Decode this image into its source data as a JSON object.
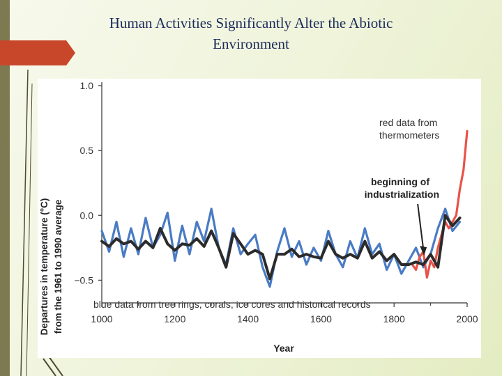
{
  "slide": {
    "title_line1": "Human Activities Significantly Alter the Abiotic",
    "title_line2": "Environment"
  },
  "colors": {
    "title": "#1b2a5a",
    "accent": "#c8472a",
    "band": "#7d7a52",
    "blue_series": "#4a7bc4",
    "red_series": "#e8534a",
    "smooth_series": "#2b2b2b"
  },
  "chart_data": {
    "type": "line",
    "xlabel": "Year",
    "ylabel_line1": "Departures in temperature (°C)",
    "ylabel_line2": "from the 1961 to 1990 average",
    "xlim": [
      1000,
      2000
    ],
    "ylim": [
      -0.6,
      1.0
    ],
    "x_ticks": [
      1000,
      1200,
      1400,
      1600,
      1800,
      2000
    ],
    "x_tick_labels": [
      "1000",
      "1200",
      "1400",
      "1600",
      "1800",
      "2000"
    ],
    "y_ticks": [
      1.0,
      0.5,
      0.0,
      -0.5
    ],
    "y_tick_labels": [
      "1.0",
      "0.5",
      "0.0",
      "−0.5"
    ],
    "annotations": {
      "thermometer_line1": "red data from",
      "thermometer_line2": "thermometers",
      "industrial_line1": "beginning of",
      "industrial_line2": "industrialization",
      "industrial_year": 1880,
      "proxy_note": "blue data from tree rings, corals, ice cores and historical records"
    },
    "series": [
      {
        "name": "proxy reconstruction (blue)",
        "x": [
          1000,
          1020,
          1040,
          1060,
          1080,
          1100,
          1120,
          1140,
          1160,
          1180,
          1200,
          1220,
          1240,
          1260,
          1280,
          1300,
          1320,
          1340,
          1360,
          1380,
          1400,
          1420,
          1440,
          1460,
          1480,
          1500,
          1520,
          1540,
          1560,
          1580,
          1600,
          1620,
          1640,
          1660,
          1680,
          1700,
          1720,
          1740,
          1760,
          1780,
          1800,
          1820,
          1840,
          1860,
          1880,
          1900,
          1920,
          1940,
          1960,
          1980
        ],
        "y": [
          -0.12,
          -0.28,
          -0.05,
          -0.32,
          -0.1,
          -0.3,
          -0.02,
          -0.25,
          -0.15,
          0.02,
          -0.35,
          -0.08,
          -0.3,
          -0.05,
          -0.2,
          0.05,
          -0.25,
          -0.38,
          -0.1,
          -0.3,
          -0.22,
          -0.15,
          -0.4,
          -0.55,
          -0.28,
          -0.1,
          -0.32,
          -0.2,
          -0.38,
          -0.25,
          -0.35,
          -0.12,
          -0.3,
          -0.4,
          -0.2,
          -0.33,
          -0.1,
          -0.3,
          -0.22,
          -0.42,
          -0.3,
          -0.45,
          -0.35,
          -0.25,
          -0.4,
          -0.3,
          -0.1,
          0.05,
          -0.12,
          -0.05
        ]
      },
      {
        "name": "thermometer record (red)",
        "x": [
          1850,
          1860,
          1870,
          1880,
          1890,
          1900,
          1910,
          1920,
          1930,
          1940,
          1950,
          1960,
          1970,
          1980,
          1990,
          2000
        ],
        "y": [
          -0.38,
          -0.42,
          -0.32,
          -0.28,
          -0.48,
          -0.35,
          -0.4,
          -0.25,
          -0.15,
          -0.05,
          -0.1,
          -0.05,
          0.0,
          0.2,
          0.35,
          0.65
        ]
      },
      {
        "name": "smoothed average (black)",
        "x": [
          1000,
          1020,
          1040,
          1060,
          1080,
          1100,
          1120,
          1140,
          1160,
          1180,
          1200,
          1220,
          1240,
          1260,
          1280,
          1300,
          1320,
          1340,
          1360,
          1380,
          1400,
          1420,
          1440,
          1460,
          1480,
          1500,
          1520,
          1540,
          1560,
          1580,
          1600,
          1620,
          1640,
          1660,
          1680,
          1700,
          1720,
          1740,
          1760,
          1780,
          1800,
          1820,
          1840,
          1860,
          1880,
          1900,
          1920,
          1940,
          1960,
          1980
        ],
        "y": [
          -0.2,
          -0.24,
          -0.18,
          -0.22,
          -0.2,
          -0.26,
          -0.2,
          -0.25,
          -0.1,
          -0.22,
          -0.27,
          -0.22,
          -0.23,
          -0.18,
          -0.24,
          -0.12,
          -0.25,
          -0.4,
          -0.14,
          -0.22,
          -0.3,
          -0.27,
          -0.3,
          -0.49,
          -0.3,
          -0.3,
          -0.26,
          -0.32,
          -0.3,
          -0.32,
          -0.33,
          -0.2,
          -0.3,
          -0.33,
          -0.3,
          -0.33,
          -0.2,
          -0.33,
          -0.28,
          -0.35,
          -0.3,
          -0.38,
          -0.38,
          -0.36,
          -0.38,
          -0.3,
          -0.4,
          0.0,
          -0.08,
          -0.02
        ]
      }
    ]
  }
}
